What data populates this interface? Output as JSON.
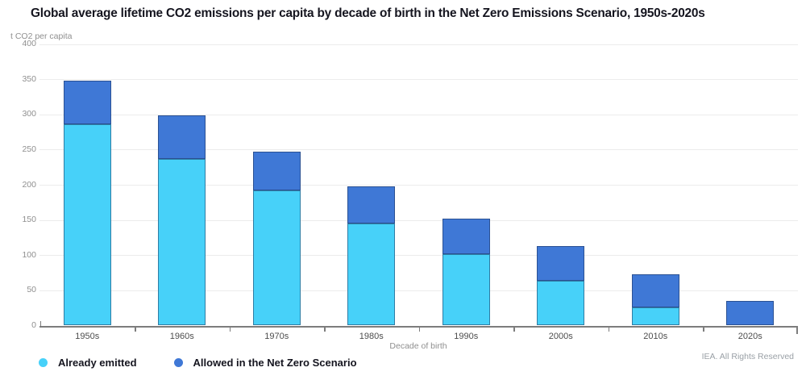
{
  "chart_data": {
    "type": "bar",
    "stacked": true,
    "title": "Global average lifetime CO2 emissions per capita by decade of birth in the Net Zero Emissions Scenario, 1950s-2020s",
    "ylabel": "t CO2 per capita",
    "xlabel": "Decade of birth",
    "ylim": [
      0,
      400
    ],
    "ytick_step": 50,
    "grid": true,
    "legend_position": "bottom-left",
    "categories": [
      "1950s",
      "1960s",
      "1970s",
      "1980s",
      "1990s",
      "2000s",
      "2010s",
      "2020s"
    ],
    "series": [
      {
        "name": "Already emitted",
        "color": "#47D1F9",
        "values": [
          286,
          237,
          192,
          145,
          101,
          64,
          26,
          0
        ]
      },
      {
        "name": "Allowed in the Net Zero Scenario",
        "color": "#3F78D6",
        "values": [
          62,
          61,
          55,
          53,
          51,
          49,
          47,
          35
        ]
      }
    ]
  },
  "footer": {
    "attribution": "IEA. All Rights Reserved"
  }
}
